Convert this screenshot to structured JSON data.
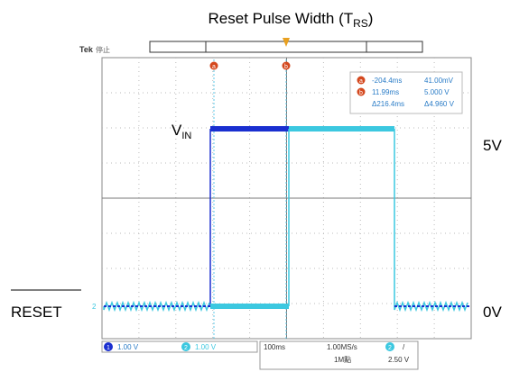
{
  "title": {
    "main": "Reset Pulse Width (T",
    "sub": "RS",
    "end": ")"
  },
  "labels": {
    "vin": {
      "main": "V",
      "sub": "IN"
    },
    "high": "5V",
    "reset": "RESET",
    "low": "0V"
  },
  "scope": {
    "brand": "Tek",
    "state": "停止",
    "marker_a": "a",
    "marker_b": "b",
    "channel_marker": "2",
    "readout": [
      [
        "a",
        "-204.4ms",
        "41.00mV"
      ],
      [
        "b",
        "11.99ms",
        "5.000 V"
      ],
      [
        "",
        "Δ216.4ms",
        "Δ4.960 V"
      ]
    ],
    "bottom": {
      "ch1": "1",
      "ch1_scale": "1.00 V",
      "ch2": "2",
      "ch2_scale": "1.00 V",
      "timebase": "100ms",
      "rate": "1.00MS/s",
      "points": "1M點",
      "trig_ch": "2",
      "trig_slope": "/",
      "trig_level": "2.50 V"
    }
  }
}
